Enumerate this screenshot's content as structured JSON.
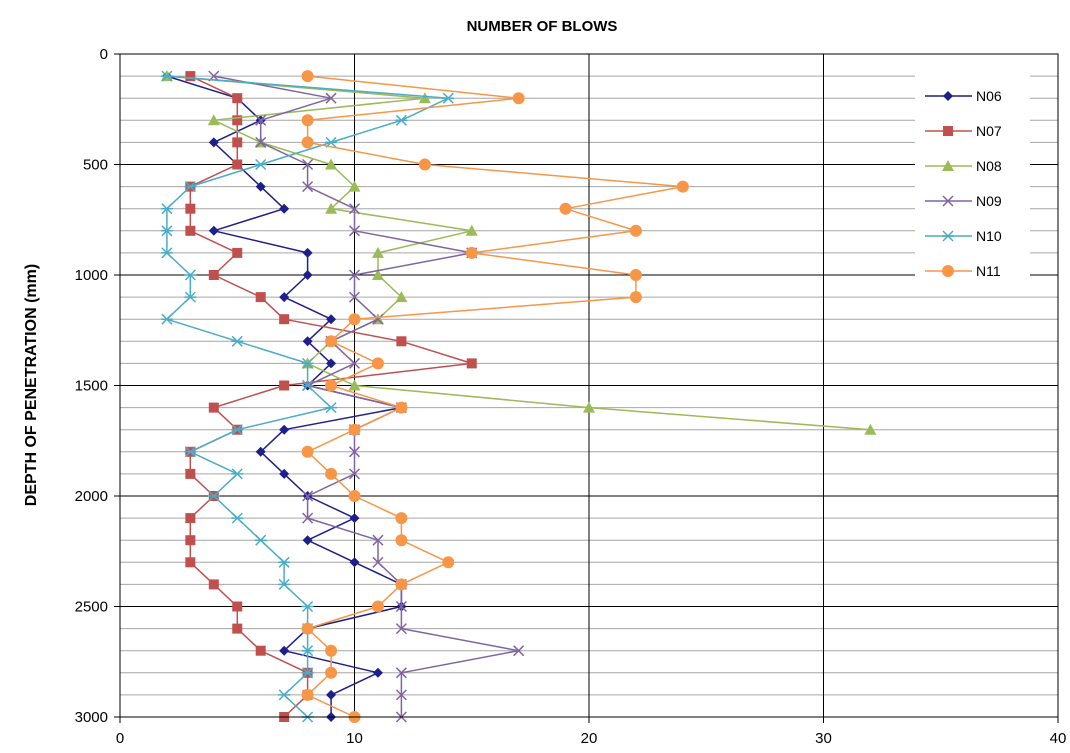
{
  "chart_data": {
    "type": "line",
    "title": "NUMBER OF BLOWS",
    "xlabel": "",
    "ylabel": "DEPTH OF PENETRATION  (mm)",
    "xlim": [
      0,
      40
    ],
    "ylim": [
      0,
      3000
    ],
    "y_inverted": true,
    "x_ticks": [
      0,
      10,
      20,
      30,
      40
    ],
    "y_ticks": [
      0,
      500,
      1000,
      1500,
      2000,
      2500,
      3000
    ],
    "grid": "on",
    "legend_position": "top-right",
    "series": [
      {
        "name": "N06",
        "color": "#1f1f8c",
        "marker": "diamond",
        "x": [
          2,
          5,
          6,
          4,
          5,
          6,
          7,
          4,
          8,
          8,
          7,
          9,
          8,
          9,
          8,
          12,
          7,
          6,
          7,
          8,
          10,
          8,
          10,
          12,
          12,
          8,
          7,
          11,
          9,
          9
        ],
        "y": [
          100,
          200,
          300,
          400,
          500,
          600,
          700,
          800,
          900,
          1000,
          1100,
          1200,
          1300,
          1400,
          1500,
          1600,
          1700,
          1800,
          1900,
          2000,
          2100,
          2200,
          2300,
          2400,
          2500,
          2600,
          2700,
          2800,
          2900,
          3000
        ]
      },
      {
        "name": "N07",
        "color": "#c0504d",
        "marker": "square",
        "x": [
          3,
          5,
          5,
          5,
          5,
          3,
          3,
          3,
          5,
          4,
          6,
          7,
          12,
          15,
          7,
          4,
          5,
          3,
          3,
          4,
          3,
          3,
          3,
          4,
          5,
          5,
          6,
          8,
          8,
          7
        ],
        "y": [
          100,
          200,
          300,
          400,
          500,
          600,
          700,
          800,
          900,
          1000,
          1100,
          1200,
          1300,
          1400,
          1500,
          1600,
          1700,
          1800,
          1900,
          2000,
          2100,
          2200,
          2300,
          2400,
          2500,
          2600,
          2700,
          2800,
          2900,
          3000
        ]
      },
      {
        "name": "N08",
        "color": "#9bbb59",
        "marker": "triangle",
        "x": [
          2,
          13,
          4,
          6,
          9,
          10,
          9,
          15,
          11,
          11,
          12,
          11,
          9,
          8,
          10,
          20,
          32
        ],
        "y": [
          100,
          200,
          300,
          400,
          500,
          600,
          700,
          800,
          900,
          1000,
          1100,
          1200,
          1300,
          1400,
          1500,
          1600,
          1700
        ]
      },
      {
        "name": "N09",
        "color": "#8064a2",
        "marker": "x",
        "x": [
          4,
          9,
          6,
          6,
          8,
          8,
          10,
          10,
          15,
          10,
          10,
          11,
          9,
          10,
          8,
          12,
          10,
          10,
          10,
          8,
          8,
          11,
          11,
          12,
          12,
          12,
          17,
          12,
          12,
          12
        ],
        "y": [
          100,
          200,
          300,
          400,
          500,
          600,
          700,
          800,
          900,
          1000,
          1100,
          1200,
          1300,
          1400,
          1500,
          1600,
          1700,
          1800,
          1900,
          2000,
          2100,
          2200,
          2300,
          2400,
          2500,
          2600,
          2700,
          2800,
          2900,
          3000
        ]
      },
      {
        "name": "N10",
        "color": "#4bacc6",
        "marker": "star",
        "x": [
          2,
          14,
          12,
          9,
          6,
          3,
          2,
          2,
          2,
          3,
          3,
          2,
          5,
          8,
          8,
          9,
          5,
          3,
          5,
          4,
          5,
          6,
          7,
          7,
          8,
          8,
          8,
          8,
          7,
          8
        ],
        "y": [
          100,
          200,
          300,
          400,
          500,
          600,
          700,
          800,
          900,
          1000,
          1100,
          1200,
          1300,
          1400,
          1500,
          1600,
          1700,
          1800,
          1900,
          2000,
          2100,
          2200,
          2300,
          2400,
          2500,
          2600,
          2700,
          2800,
          2900,
          3000
        ]
      },
      {
        "name": "N11",
        "color": "#f79646",
        "marker": "circle",
        "x": [
          8,
          17,
          8,
          8,
          13,
          24,
          19,
          22,
          15,
          22,
          22,
          10,
          9,
          11,
          9,
          12,
          10,
          8,
          9,
          10,
          12,
          12,
          14,
          12,
          11,
          8,
          9,
          9,
          8,
          10
        ],
        "y": [
          100,
          200,
          300,
          400,
          500,
          600,
          700,
          800,
          900,
          1000,
          1100,
          1200,
          1300,
          1400,
          1500,
          1600,
          1700,
          1800,
          1900,
          2000,
          2100,
          2200,
          2300,
          2400,
          2500,
          2600,
          2700,
          2800,
          2900,
          3000
        ]
      }
    ]
  }
}
